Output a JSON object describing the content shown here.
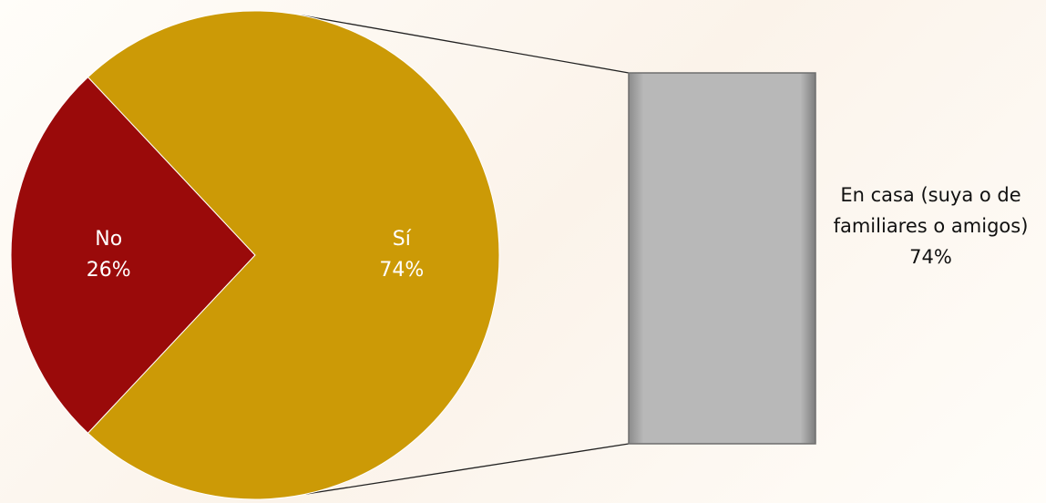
{
  "chart_data": {
    "type": "pie-of-bar",
    "categories": [
      "No",
      "Sí"
    ],
    "values": [
      26,
      74
    ],
    "value_labels": [
      "26%",
      "74%"
    ],
    "colors": [
      "#9a0a0a",
      "#cc9a06"
    ],
    "bar": {
      "categories": [
        "En casa (suya o de familiares o amigos)"
      ],
      "values": [
        74
      ],
      "value_labels": [
        "74%"
      ],
      "color": "#b4b4b4"
    }
  }
}
